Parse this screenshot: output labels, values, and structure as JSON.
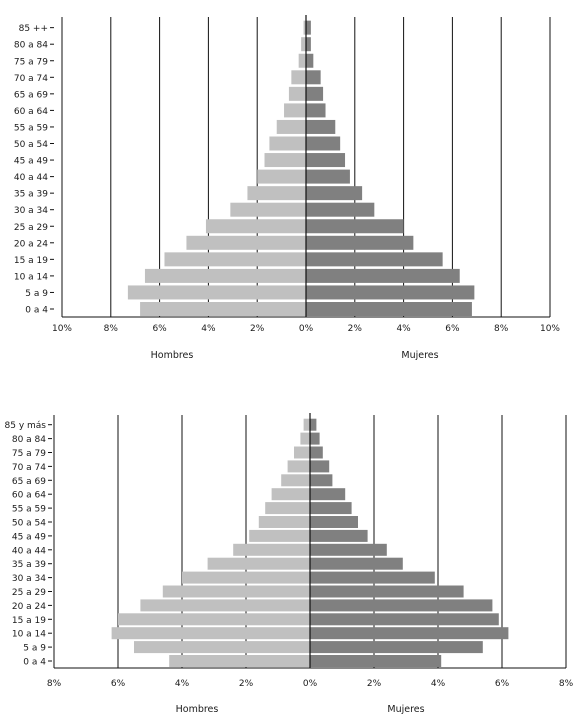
{
  "chart_data": [
    {
      "type": "bar",
      "orientation": "horizontal-population-pyramid",
      "categories": [
        "0 a 4",
        "5 a 9",
        "10 a 14",
        "15 a 19",
        "20 a 24",
        "25 a 29",
        "30 a 34",
        "35 a 39",
        "40 a 44",
        "45 a 49",
        "50 a 54",
        "55 a 59",
        "60 a 64",
        "65 a 69",
        "70 a 74",
        "75 a 79",
        "80 a 84",
        "85 ++"
      ],
      "series": [
        {
          "name": "Hombres",
          "color": "#c0c0c0",
          "values": [
            6.8,
            7.3,
            6.6,
            5.8,
            4.9,
            4.1,
            3.1,
            2.4,
            2.0,
            1.7,
            1.5,
            1.2,
            0.9,
            0.7,
            0.6,
            0.3,
            0.2,
            0.1
          ]
        },
        {
          "name": "Mujeres",
          "color": "#808080",
          "values": [
            6.8,
            6.9,
            6.3,
            5.6,
            4.4,
            4.0,
            2.8,
            2.3,
            1.8,
            1.6,
            1.4,
            1.2,
            0.8,
            0.7,
            0.6,
            0.3,
            0.2,
            0.2
          ]
        }
      ],
      "xlim": [
        -10,
        10
      ],
      "x_ticks": [
        "10%",
        "8%",
        "6%",
        "4%",
        "2%",
        "0%",
        "2%",
        "4%",
        "6%",
        "8%",
        "10%"
      ],
      "grid": "vertical lines",
      "sex_labels": {
        "left": "Hombres",
        "right": "Mujeres"
      }
    },
    {
      "type": "bar",
      "orientation": "horizontal-population-pyramid",
      "categories": [
        "0 a 4",
        "5 a 9",
        "10 a 14",
        "15 a 19",
        "20 a 24",
        "25 a 29",
        "30 a 34",
        "35 a 39",
        "40 a 44",
        "45 a 49",
        "50 a 54",
        "55 a 59",
        "60 a 64",
        "65 a 69",
        "70 a 74",
        "75 a 79",
        "80 a 84",
        "85 y más"
      ],
      "series": [
        {
          "name": "Hombres",
          "color": "#c0c0c0",
          "values": [
            4.4,
            5.5,
            6.2,
            6.0,
            5.3,
            4.6,
            4.0,
            3.2,
            2.4,
            1.9,
            1.6,
            1.4,
            1.2,
            0.9,
            0.7,
            0.5,
            0.3,
            0.2
          ]
        },
        {
          "name": "Mujeres",
          "color": "#808080",
          "values": [
            4.1,
            5.4,
            6.2,
            5.9,
            5.7,
            4.8,
            3.9,
            2.9,
            2.4,
            1.8,
            1.5,
            1.3,
            1.1,
            0.7,
            0.6,
            0.4,
            0.3,
            0.2
          ]
        }
      ],
      "xlim": [
        -8,
        8
      ],
      "x_ticks": [
        "8%",
        "6%",
        "4%",
        "2%",
        "0%",
        "2%",
        "4%",
        "6%",
        "8%"
      ],
      "grid": "vertical lines",
      "sex_labels": {
        "left": "Hombres",
        "right": "Mujeres"
      }
    }
  ]
}
